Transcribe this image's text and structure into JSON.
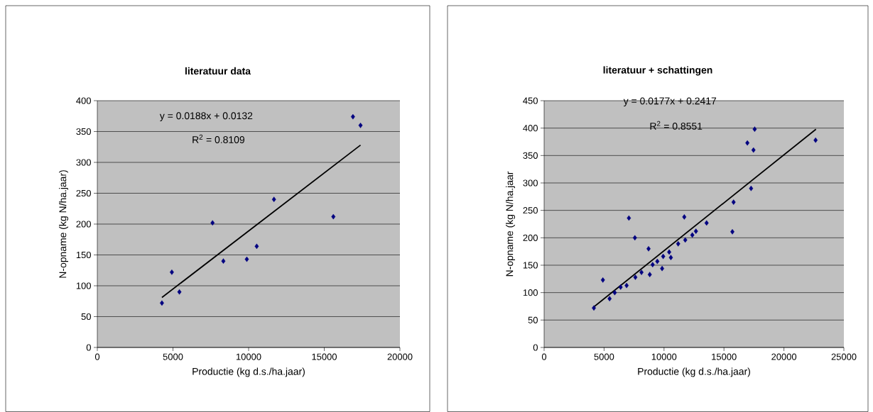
{
  "chart_data": [
    {
      "type": "scatter",
      "title": "literatuur data",
      "xlabel": "Productie (kg d.s./ha.jaar)",
      "ylabel": "N-opname (kg N/ha.jaar)",
      "annotations": [
        "y = 0.0188x + 0.0132",
        "R$^{2}$ = 0.8109"
      ],
      "xlim": [
        0,
        20000
      ],
      "ylim": [
        0,
        400
      ],
      "xticks": [
        0,
        5000,
        10000,
        15000,
        20000
      ],
      "yticks": [
        0,
        50,
        100,
        150,
        200,
        250,
        300,
        350,
        400
      ],
      "grid": "y",
      "marker": "diamond",
      "series": [
        {
          "color": "#000080",
          "x": [
            4270,
            4925,
            5425,
            7615,
            8330,
            9880,
            10535,
            11675,
            15600,
            16895,
            17395
          ],
          "values": [
            72,
            122,
            90,
            202,
            140,
            143,
            164,
            240,
            212,
            374,
            360
          ]
        },
        {
          "type": "line",
          "color": "#000000",
          "marker": "none",
          "x": [
            4270,
            17395
          ],
          "values": [
            81,
            328
          ]
        }
      ]
    },
    {
      "type": "scatter",
      "title": "literatuur + schattingen",
      "xlabel": "Productie (kg d.s./ha.jaar)",
      "ylabel": "N-opname (kg N/ha.jaar",
      "annotations": [
        "y = 0.0177x + 0.2417",
        "R$^{2}$ = 0.8551"
      ],
      "xlim": [
        0,
        25000
      ],
      "ylim": [
        0,
        450
      ],
      "xticks": [
        0,
        5000,
        10000,
        15000,
        20000,
        25000
      ],
      "yticks": [
        0,
        50,
        100,
        150,
        200,
        250,
        300,
        350,
        400,
        450
      ],
      "grid": "y",
      "marker": "diamond",
      "series": [
        {
          "color": "#000080",
          "x": [
            4150,
            4900,
            5460,
            5890,
            6380,
            6880,
            7070,
            7570,
            7610,
            8120,
            8710,
            8810,
            9050,
            9440,
            9840,
            9930,
            10430,
            10570,
            11180,
            11690,
            11770,
            12360,
            12660,
            13550,
            15700,
            15800,
            16950,
            17260,
            17460,
            17560,
            22640
          ],
          "values": [
            72,
            123,
            89,
            100,
            110,
            113,
            236,
            200,
            128,
            137,
            180,
            133,
            151,
            157,
            144,
            166,
            174,
            164,
            189,
            238,
            196,
            205,
            212,
            227,
            211,
            265,
            373,
            290,
            360,
            398,
            378
          ]
        },
        {
          "type": "line",
          "color": "#000000",
          "marker": "none",
          "x": [
            4150,
            22670
          ],
          "values": [
            74,
            398
          ]
        }
      ]
    }
  ]
}
